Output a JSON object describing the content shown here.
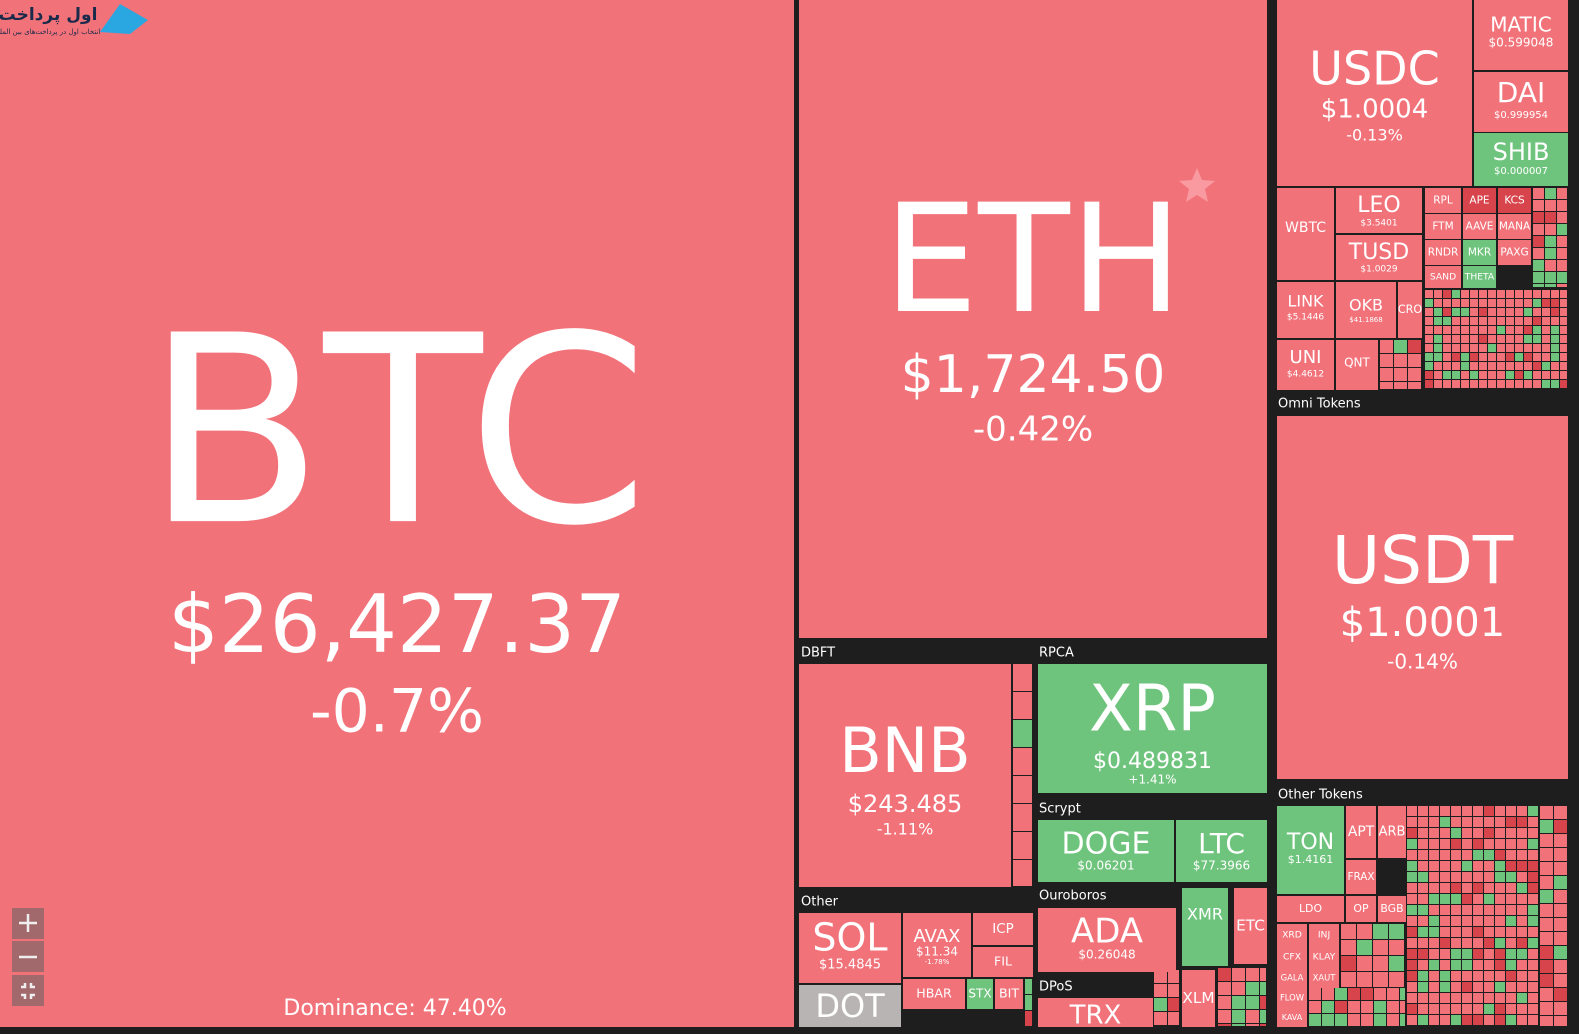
{
  "logo": {
    "name": "اول پرداخت",
    "tagline": "انتخاب اول در پرداخت‌های بین المللی"
  },
  "groups": [
    "DBFT",
    "RPCA",
    "Scrypt",
    "Other",
    "Ouroboros",
    "DPoS",
    "Omni Tokens",
    "Other Tokens"
  ],
  "tiles": [
    {
      "symbol": "BTC",
      "price": "$26,427.37",
      "change": "-0.7%"
    },
    {
      "symbol": "ETH",
      "price": "$1,724.50",
      "change": "-0.42%"
    },
    {
      "symbol": "BNB",
      "price": "$243.485",
      "change": "-1.11%"
    },
    {
      "symbol": "XRP",
      "price": "$0.489831",
      "change": "+1.41%"
    },
    {
      "symbol": "DOGE",
      "price": "$0.06201"
    },
    {
      "symbol": "LTC",
      "price": "$77.3966"
    },
    {
      "symbol": "SOL",
      "price": "$15.4845"
    },
    {
      "symbol": "AVAX",
      "price": "$11.34",
      "change": "-1.78%"
    },
    {
      "symbol": "ICP"
    },
    {
      "symbol": "FIL"
    },
    {
      "symbol": "HBAR"
    },
    {
      "symbol": "STX"
    },
    {
      "symbol": "BIT"
    },
    {
      "symbol": "DOT"
    },
    {
      "symbol": "ADA",
      "price": "$0.26048"
    },
    {
      "symbol": "XMR"
    },
    {
      "symbol": "ETC"
    },
    {
      "symbol": "XLM"
    },
    {
      "symbol": "TRX"
    },
    {
      "symbol": "USDC",
      "price": "$1.0004",
      "change": "-0.13%"
    },
    {
      "symbol": "MATIC",
      "price": "$0.599048"
    },
    {
      "symbol": "DAI",
      "price": "$0.999954"
    },
    {
      "symbol": "SHIB",
      "price": "$0.000007"
    },
    {
      "symbol": "WBTC"
    },
    {
      "symbol": "LEO",
      "price": "$3.5401"
    },
    {
      "symbol": "TUSD",
      "price": "$1.0029"
    },
    {
      "symbol": "LINK",
      "price": "$5.1446"
    },
    {
      "symbol": "OKB",
      "price": "$41.1868"
    },
    {
      "symbol": "CRO"
    },
    {
      "symbol": "UNI",
      "price": "$4.4612"
    },
    {
      "symbol": "QNT"
    },
    {
      "symbol": "RPL"
    },
    {
      "symbol": "APE"
    },
    {
      "symbol": "KCS"
    },
    {
      "symbol": "FTM"
    },
    {
      "symbol": "AAVE"
    },
    {
      "symbol": "MANA"
    },
    {
      "symbol": "RNDR"
    },
    {
      "symbol": "MKR"
    },
    {
      "symbol": "PAXG"
    },
    {
      "symbol": "SAND"
    },
    {
      "symbol": "THETA"
    },
    {
      "symbol": "USDT",
      "price": "$1.0001",
      "change": "-0.14%"
    },
    {
      "symbol": "TON",
      "price": "$1.4161"
    },
    {
      "symbol": "APT"
    },
    {
      "symbol": "ARB"
    },
    {
      "symbol": "FRAX"
    },
    {
      "symbol": "LDO"
    },
    {
      "symbol": "OP"
    },
    {
      "symbol": "BGB"
    },
    {
      "symbol": "XRD"
    },
    {
      "symbol": "INJ"
    },
    {
      "symbol": "CFX"
    },
    {
      "symbol": "KLAY"
    },
    {
      "symbol": "GALA"
    },
    {
      "symbol": "XAUT"
    },
    {
      "symbol": "FLOW"
    },
    {
      "symbol": "KAVA"
    }
  ],
  "footer": {
    "dominance": "Dominance: 47.40%"
  }
}
